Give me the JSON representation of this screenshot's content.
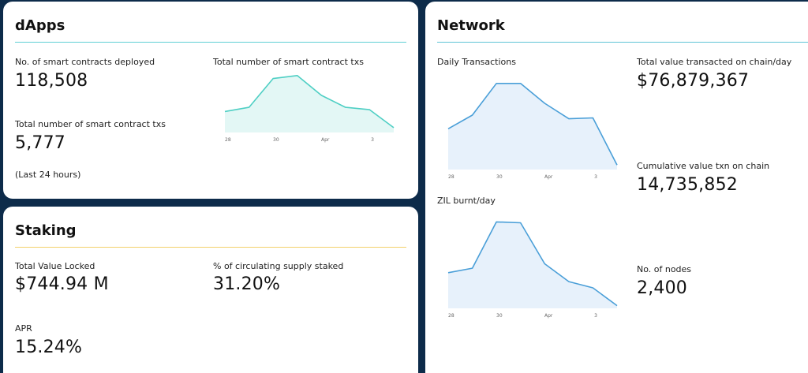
{
  "colors": {
    "background": "#0d2b4a",
    "dapps_rule": "#5fcfd4",
    "staking_rule": "#f2d16b",
    "network_rule": "#5fc4d6",
    "dapps_line": "#4fcfc4",
    "dapps_fill": "#e3f7f5",
    "network_line": "#4a9fd8",
    "network_fill": "#e7f1fb"
  },
  "dapps": {
    "title": "dApps",
    "contracts_label": "No. of smart contracts deployed",
    "contracts_value": "118,508",
    "txs_label": "Total number of smart contract txs",
    "txs_value": "5,777",
    "period_note": "(Last 24 hours)",
    "chart_label": "Total number of smart contract txs"
  },
  "staking": {
    "title": "Staking",
    "tvl_label": "Total Value Locked",
    "tvl_value": "$744.94 M",
    "supply_label": "% of circulating supply staked",
    "supply_value": "31.20%",
    "apr_label": "APR",
    "apr_value": "15.24%"
  },
  "network": {
    "title": "Network",
    "daily_tx_label": "Daily Transactions",
    "zil_burnt_label": "ZIL burnt/day",
    "value_day_label": "Total value transacted on chain/day",
    "value_day_value": "$76,879,367",
    "cumulative_label": "Cumulative value txn on chain",
    "cumulative_value": "14,735,852",
    "nodes_label": "No. of nodes",
    "nodes_value": "2,400"
  },
  "chart_data": [
    {
      "type": "area",
      "x_ticks": [
        "28",
        "30",
        "Apr",
        "3"
      ],
      "values": [
        0.35,
        0.42,
        0.9,
        0.95,
        0.62,
        0.42,
        0.38,
        0.08
      ],
      "ylim": [
        0,
        1
      ]
    },
    {
      "type": "area",
      "x_ticks": [
        "28",
        "30",
        "Apr",
        "3"
      ],
      "values": [
        0.45,
        0.6,
        0.95,
        0.95,
        0.73,
        0.56,
        0.57,
        0.05
      ],
      "ylim": [
        0,
        1
      ]
    },
    {
      "type": "area",
      "x_ticks": [
        "28",
        "30",
        "Apr",
        "3"
      ],
      "values": [
        0.4,
        0.45,
        0.97,
        0.96,
        0.5,
        0.3,
        0.23,
        0.03
      ],
      "ylim": [
        0,
        1
      ]
    }
  ]
}
